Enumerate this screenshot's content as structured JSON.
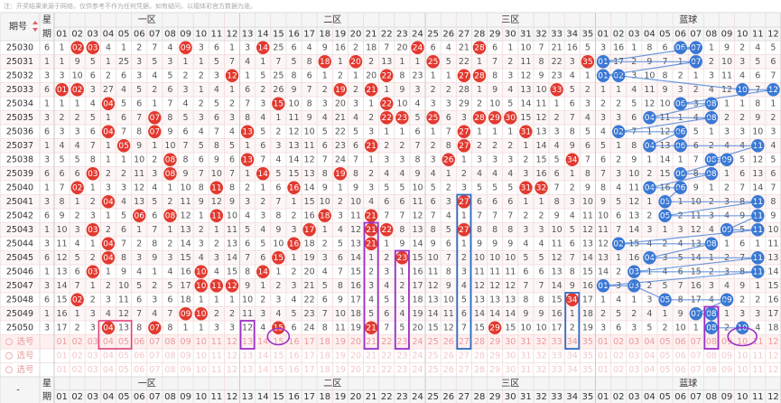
{
  "notice": "注：开奖结果来源于网络，仅供参考不作为任何凭据，如有疑问，以福体彩官方数据为准。",
  "header": {
    "issue": "期号",
    "week_top": "星",
    "week_bottom": "期",
    "zones": [
      {
        "name": "一区",
        "numbers": [
          "01",
          "02",
          "03",
          "04",
          "05",
          "06",
          "07",
          "08",
          "09",
          "10",
          "11",
          "12"
        ]
      },
      {
        "name": "二区",
        "numbers": [
          "13",
          "14",
          "15",
          "16",
          "17",
          "18",
          "19",
          "20",
          "21",
          "22",
          "23",
          "24"
        ]
      },
      {
        "name": "三区",
        "numbers": [
          "25",
          "26",
          "27",
          "28",
          "29",
          "30",
          "31",
          "32",
          "33",
          "34",
          "35"
        ]
      },
      {
        "name": "蓝球",
        "numbers": [
          "01",
          "02",
          "03",
          "04",
          "05",
          "06",
          "07",
          "08",
          "09",
          "10",
          "11",
          "12"
        ]
      }
    ]
  },
  "pick_label": "选号",
  "footer_dash": "-",
  "rows": [
    {
      "issue": "25030",
      "week": "6",
      "cells": [
        [
          "1",
          "02",
          "03",
          "4",
          "1",
          "2",
          "7",
          "4",
          "09",
          "3",
          "6",
          "1"
        ],
        [
          "3",
          "14",
          "25",
          "6",
          "4",
          "9",
          "16",
          "2",
          "18",
          "7",
          "20",
          "24"
        ],
        [
          "6",
          "4",
          "21",
          "28",
          "6",
          "1",
          "10",
          "7",
          "21",
          "16",
          "5"
        ],
        [
          "3",
          "16",
          "1",
          "8",
          "6",
          "06",
          "07",
          "1",
          "9",
          "2",
          "4",
          "5"
        ]
      ]
    },
    {
      "issue": "25031",
      "week": "1",
      "cells": [
        [
          "1",
          "9",
          "5",
          "1",
          "25",
          "3",
          "5",
          "3",
          "1",
          "1",
          "5",
          "7"
        ],
        [
          "4",
          "1",
          "7",
          "5",
          "8",
          "18",
          "1",
          "20",
          "2",
          "13",
          "1",
          "1"
        ],
        [
          "25",
          "5",
          "22",
          "1",
          "7",
          "2",
          "11",
          "8",
          "22",
          "3",
          "35"
        ],
        [
          "01",
          "17",
          "2",
          "9",
          "7",
          "1",
          "07",
          "2",
          "10",
          "3",
          "5",
          "6"
        ]
      ]
    },
    {
      "issue": "25032",
      "week": "3",
      "cells": [
        [
          "3",
          "10",
          "6",
          "2",
          "6",
          "3",
          "4",
          "5",
          "2",
          "2",
          "3",
          "12"
        ],
        [
          "1",
          "5",
          "25",
          "8",
          "6",
          "1",
          "2",
          "1",
          "20",
          "22",
          "8",
          "23"
        ],
        [
          "1",
          "1",
          "27",
          "28",
          "8",
          "3",
          "12",
          "9",
          "23",
          "4",
          "1"
        ],
        [
          "01",
          "02",
          "3",
          "10",
          "8",
          "2",
          "1",
          "3",
          "11",
          "4",
          "6",
          "7"
        ]
      ]
    },
    {
      "issue": "25033",
      "week": "6",
      "cells": [
        [
          "01",
          "02",
          "3",
          "27",
          "4",
          "5",
          "2",
          "6",
          "3",
          "1",
          "4",
          "1"
        ],
        [
          "6",
          "2",
          "26",
          "9",
          "7",
          "2",
          "19",
          "2",
          "21",
          "1",
          "9",
          "3"
        ],
        [
          "2",
          "2",
          "28",
          "1",
          "9",
          "4",
          "13",
          "10",
          "33",
          "5",
          "2"
        ],
        [
          "1",
          "1",
          "4",
          "11",
          "9",
          "3",
          "2",
          "4",
          "12",
          "10",
          "7",
          "12"
        ]
      ]
    },
    {
      "issue": "25034",
      "week": "1",
      "cells": [
        [
          "1",
          "1",
          "4",
          "04",
          "5",
          "6",
          "1",
          "7",
          "4",
          "2",
          "5",
          "2"
        ],
        [
          "7",
          "3",
          "15",
          "10",
          "8",
          "3",
          "20",
          "3",
          "1",
          "22",
          "10",
          "4"
        ],
        [
          "3",
          "3",
          "29",
          "2",
          "10",
          "5",
          "14",
          "11",
          "1",
          "6",
          "3"
        ],
        [
          "2",
          "2",
          "5",
          "12",
          "10",
          "06",
          "3",
          "08",
          "1",
          "1",
          "8",
          "1"
        ]
      ]
    },
    {
      "issue": "25035",
      "week": "3",
      "cells": [
        [
          "2",
          "2",
          "5",
          "1",
          "6",
          "7",
          "07",
          "8",
          "5",
          "3",
          "6",
          "3"
        ],
        [
          "8",
          "4",
          "1",
          "11",
          "9",
          "4",
          "21",
          "4",
          "2",
          "22",
          "23",
          "5"
        ],
        [
          "25",
          "6",
          "3",
          "28",
          "29",
          "30",
          "15",
          "12",
          "2",
          "7",
          "4"
        ],
        [
          "3",
          "3",
          "6",
          "04",
          "11",
          "1",
          "4",
          "08",
          "2",
          "2",
          "9",
          "2"
        ]
      ]
    },
    {
      "issue": "25036",
      "week": "6",
      "cells": [
        [
          "3",
          "3",
          "6",
          "04",
          "7",
          "8",
          "07",
          "9",
          "6",
          "4",
          "7",
          "4"
        ],
        [
          "13",
          "5",
          "2",
          "12",
          "10",
          "5",
          "22",
          "5",
          "3",
          "1",
          "1",
          "6"
        ],
        [
          "1",
          "7",
          "27",
          "1",
          "1",
          "1",
          "31",
          "13",
          "3",
          "8",
          "5"
        ],
        [
          "4",
          "02",
          "7",
          "1",
          "12",
          "06",
          "5",
          "1",
          "3",
          "3",
          "10",
          "3"
        ]
      ]
    },
    {
      "issue": "25037",
      "week": "1",
      "cells": [
        [
          "4",
          "4",
          "7",
          "1",
          "05",
          "9",
          "1",
          "10",
          "7",
          "5",
          "8",
          "5"
        ],
        [
          "1",
          "6",
          "3",
          "13",
          "11",
          "6",
          "23",
          "6",
          "21",
          "2",
          "2",
          "7"
        ],
        [
          "2",
          "8",
          "27",
          "2",
          "2",
          "2",
          "1",
          "14",
          "4",
          "9",
          "6"
        ],
        [
          "5",
          "1",
          "8",
          "04",
          "13",
          "06",
          "6",
          "2",
          "4",
          "4",
          "11",
          "4"
        ]
      ]
    },
    {
      "issue": "25038",
      "week": "3",
      "cells": [
        [
          "5",
          "5",
          "8",
          "1",
          "1",
          "10",
          "2",
          "08",
          "8",
          "6",
          "9",
          "6"
        ],
        [
          "13",
          "7",
          "4",
          "14",
          "12",
          "7",
          "24",
          "7",
          "1",
          "3",
          "3",
          "8"
        ],
        [
          "3",
          "26",
          "1",
          "3",
          "3",
          "3",
          "2",
          "15",
          "5",
          "34",
          "7"
        ],
        [
          "6",
          "2",
          "9",
          "1",
          "14",
          "1",
          "7",
          "08",
          "09",
          "5",
          "12",
          "5"
        ]
      ]
    },
    {
      "issue": "25039",
      "week": "6",
      "cells": [
        [
          "6",
          "6",
          "03",
          "2",
          "2",
          "11",
          "3",
          "08",
          "9",
          "7",
          "10",
          "7"
        ],
        [
          "1",
          "14",
          "5",
          "15",
          "13",
          "8",
          "19",
          "8",
          "2",
          "4",
          "4",
          "9"
        ],
        [
          "4",
          "1",
          "2",
          "4",
          "4",
          "4",
          "3",
          "16",
          "6",
          "1",
          "8"
        ],
        [
          "7",
          "3",
          "10",
          "2",
          "15",
          "06",
          "8",
          "08",
          "1",
          "6",
          "13",
          "6"
        ]
      ]
    },
    {
      "issue": "25040",
      "week": "1",
      "cells": [
        [
          "7",
          "02",
          "1",
          "3",
          "3",
          "12",
          "4",
          "1",
          "10",
          "8",
          "11",
          "8"
        ],
        [
          "2",
          "1",
          "6",
          "16",
          "14",
          "9",
          "1",
          "9",
          "3",
          "5",
          "5",
          "10"
        ],
        [
          "5",
          "2",
          "3",
          "5",
          "5",
          "5",
          "31",
          "32",
          "7",
          "2",
          "9"
        ],
        [
          "8",
          "4",
          "11",
          "04",
          "16",
          "06",
          "9",
          "1",
          "2",
          "7",
          "14",
          "7"
        ]
      ]
    },
    {
      "issue": "25041",
      "week": "3",
      "cells": [
        [
          "8",
          "1",
          "2",
          "04",
          "4",
          "13",
          "5",
          "2",
          "11",
          "9",
          "12",
          "9"
        ],
        [
          "3",
          "2",
          "7",
          "1",
          "15",
          "10",
          "2",
          "10",
          "4",
          "6",
          "6",
          "11"
        ],
        [
          "6",
          "3",
          "27",
          "6",
          "6",
          "6",
          "1",
          "1",
          "8",
          "3",
          "10"
        ],
        [
          "9",
          "5",
          "12",
          "1",
          "05",
          "1",
          "10",
          "2",
          "3",
          "8",
          "11",
          "8"
        ]
      ]
    },
    {
      "issue": "25042",
      "week": "6",
      "cells": [
        [
          "9",
          "2",
          "3",
          "1",
          "5",
          "06",
          "6",
          "08",
          "12",
          "1",
          "11",
          "10"
        ],
        [
          "4",
          "3",
          "8",
          "2",
          "16",
          "18",
          "3",
          "11",
          "21",
          "7",
          "7",
          "12"
        ],
        [
          "7",
          "4",
          "1",
          "7",
          "7",
          "7",
          "2",
          "2",
          "9",
          "4",
          "11"
        ],
        [
          "10",
          "6",
          "13",
          "2",
          "05",
          "2",
          "11",
          "3",
          "4",
          "9",
          "11",
          "9"
        ]
      ]
    },
    {
      "issue": "25043",
      "week": "1",
      "cells": [
        [
          "10",
          "3",
          "03",
          "2",
          "6",
          "1",
          "7",
          "1",
          "13",
          "2",
          "1",
          "11"
        ],
        [
          "5",
          "4",
          "9",
          "3",
          "17",
          "1",
          "4",
          "12",
          "21",
          "22",
          "8",
          "13"
        ],
        [
          "8",
          "5",
          "27",
          "8",
          "8",
          "8",
          "3",
          "3",
          "10",
          "5",
          "12"
        ],
        [
          "11",
          "7",
          "14",
          "3",
          "1",
          "3",
          "12",
          "4",
          "09",
          "5",
          "11",
          "10"
        ]
      ]
    },
    {
      "issue": "25044",
      "week": "3",
      "cells": [
        [
          "11",
          "4",
          "1",
          "04",
          "7",
          "2",
          "8",
          "2",
          "14",
          "3",
          "2",
          "13"
        ],
        [
          "6",
          "5",
          "10",
          "16",
          "18",
          "2",
          "5",
          "13",
          "21",
          "1",
          "9",
          "14"
        ],
        [
          "9",
          "6",
          "1",
          "9",
          "9",
          "9",
          "4",
          "4",
          "11",
          "6",
          "13"
        ],
        [
          "12",
          "02",
          "15",
          "4",
          "2",
          "4",
          "13",
          "08",
          "1",
          "6",
          "1",
          "11"
        ]
      ]
    },
    {
      "issue": "25045",
      "week": "6",
      "cells": [
        [
          "12",
          "5",
          "2",
          "04",
          "8",
          "3",
          "9",
          "3",
          "15",
          "4",
          "3",
          "14"
        ],
        [
          "7",
          "6",
          "15",
          "1",
          "19",
          "3",
          "6",
          "14",
          "1",
          "2",
          "23",
          "15"
        ],
        [
          "10",
          "7",
          "2",
          "10",
          "10",
          "10",
          "5",
          "5",
          "12",
          "7",
          "14"
        ],
        [
          "13",
          "1",
          "16",
          "04",
          "3",
          "5",
          "14",
          "1",
          "2",
          "7",
          "11",
          "13"
        ]
      ]
    },
    {
      "issue": "25046",
      "week": "1",
      "cells": [
        [
          "13",
          "6",
          "03",
          "1",
          "9",
          "4",
          "1",
          "4",
          "16",
          "10",
          "4",
          "15"
        ],
        [
          "8",
          "14",
          "1",
          "2",
          "20",
          "4",
          "7",
          "15",
          "2",
          "3",
          "1",
          "16"
        ],
        [
          "11",
          "8",
          "3",
          "11",
          "11",
          "11",
          "6",
          "6",
          "13",
          "8",
          "15"
        ],
        [
          "14",
          "2",
          "03",
          "1",
          "4",
          "6",
          "15",
          "2",
          "3",
          "8",
          "11",
          "14"
        ]
      ]
    },
    {
      "issue": "25047",
      "week": "3",
      "cells": [
        [
          "14",
          "7",
          "1",
          "2",
          "10",
          "5",
          "2",
          "5",
          "17",
          "10",
          "11",
          "12"
        ],
        [
          "9",
          "1",
          "2",
          "3",
          "21",
          "5",
          "8",
          "16",
          "3",
          "4",
          "2",
          "17"
        ],
        [
          "12",
          "9",
          "4",
          "12",
          "12",
          "12",
          "7",
          "7",
          "14",
          "9",
          "16"
        ],
        [
          "01",
          "3",
          "03",
          "2",
          "5",
          "7",
          "16",
          "3",
          "4",
          "9",
          "1",
          "15"
        ]
      ]
    },
    {
      "issue": "25048",
      "week": "6",
      "cells": [
        [
          "15",
          "02",
          "2",
          "3",
          "11",
          "6",
          "3",
          "6",
          "18",
          "1",
          "1",
          "1"
        ],
        [
          "10",
          "2",
          "3",
          "4",
          "22",
          "6",
          "9",
          "17",
          "4",
          "5",
          "3",
          "18"
        ],
        [
          "13",
          "10",
          "5",
          "13",
          "13",
          "13",
          "8",
          "8",
          "15",
          "34",
          "17"
        ],
        [
          "1",
          "4",
          "1",
          "3",
          "05",
          "8",
          "17",
          "4",
          "09",
          "2",
          "2",
          "16"
        ]
      ]
    },
    {
      "issue": "25049",
      "week": "1",
      "cells": [
        [
          "16",
          "1",
          "3",
          "4",
          "12",
          "7",
          "4",
          "7",
          "09",
          "10",
          "2",
          "2"
        ],
        [
          "11",
          "3",
          "4",
          "5",
          "23",
          "7",
          "10",
          "18",
          "5",
          "6",
          "4",
          "19"
        ],
        [
          "14",
          "11",
          "6",
          "14",
          "14",
          "14",
          "9",
          "9",
          "16",
          "1",
          "18"
        ],
        [
          "2",
          "5",
          "2",
          "4",
          "1",
          "9",
          "07",
          "08",
          "1",
          "3",
          "3",
          "17"
        ]
      ]
    },
    {
      "issue": "25050",
      "week": "3",
      "cells": [
        [
          "17",
          "2",
          "3",
          "04",
          "13",
          "8",
          "07",
          "8",
          "1",
          "1",
          "3",
          "3"
        ],
        [
          "12",
          "4",
          "15",
          "6",
          "24",
          "8",
          "11",
          "19",
          "21",
          "7",
          "5",
          "20"
        ],
        [
          "15",
          "12",
          "7",
          "15",
          "29",
          "15",
          "10",
          "10",
          "17",
          "2",
          "19"
        ],
        [
          "3",
          "6",
          "3",
          "5",
          "2",
          "10",
          "1",
          "08",
          "2",
          "10",
          "4",
          "18"
        ]
      ]
    }
  ]
}
